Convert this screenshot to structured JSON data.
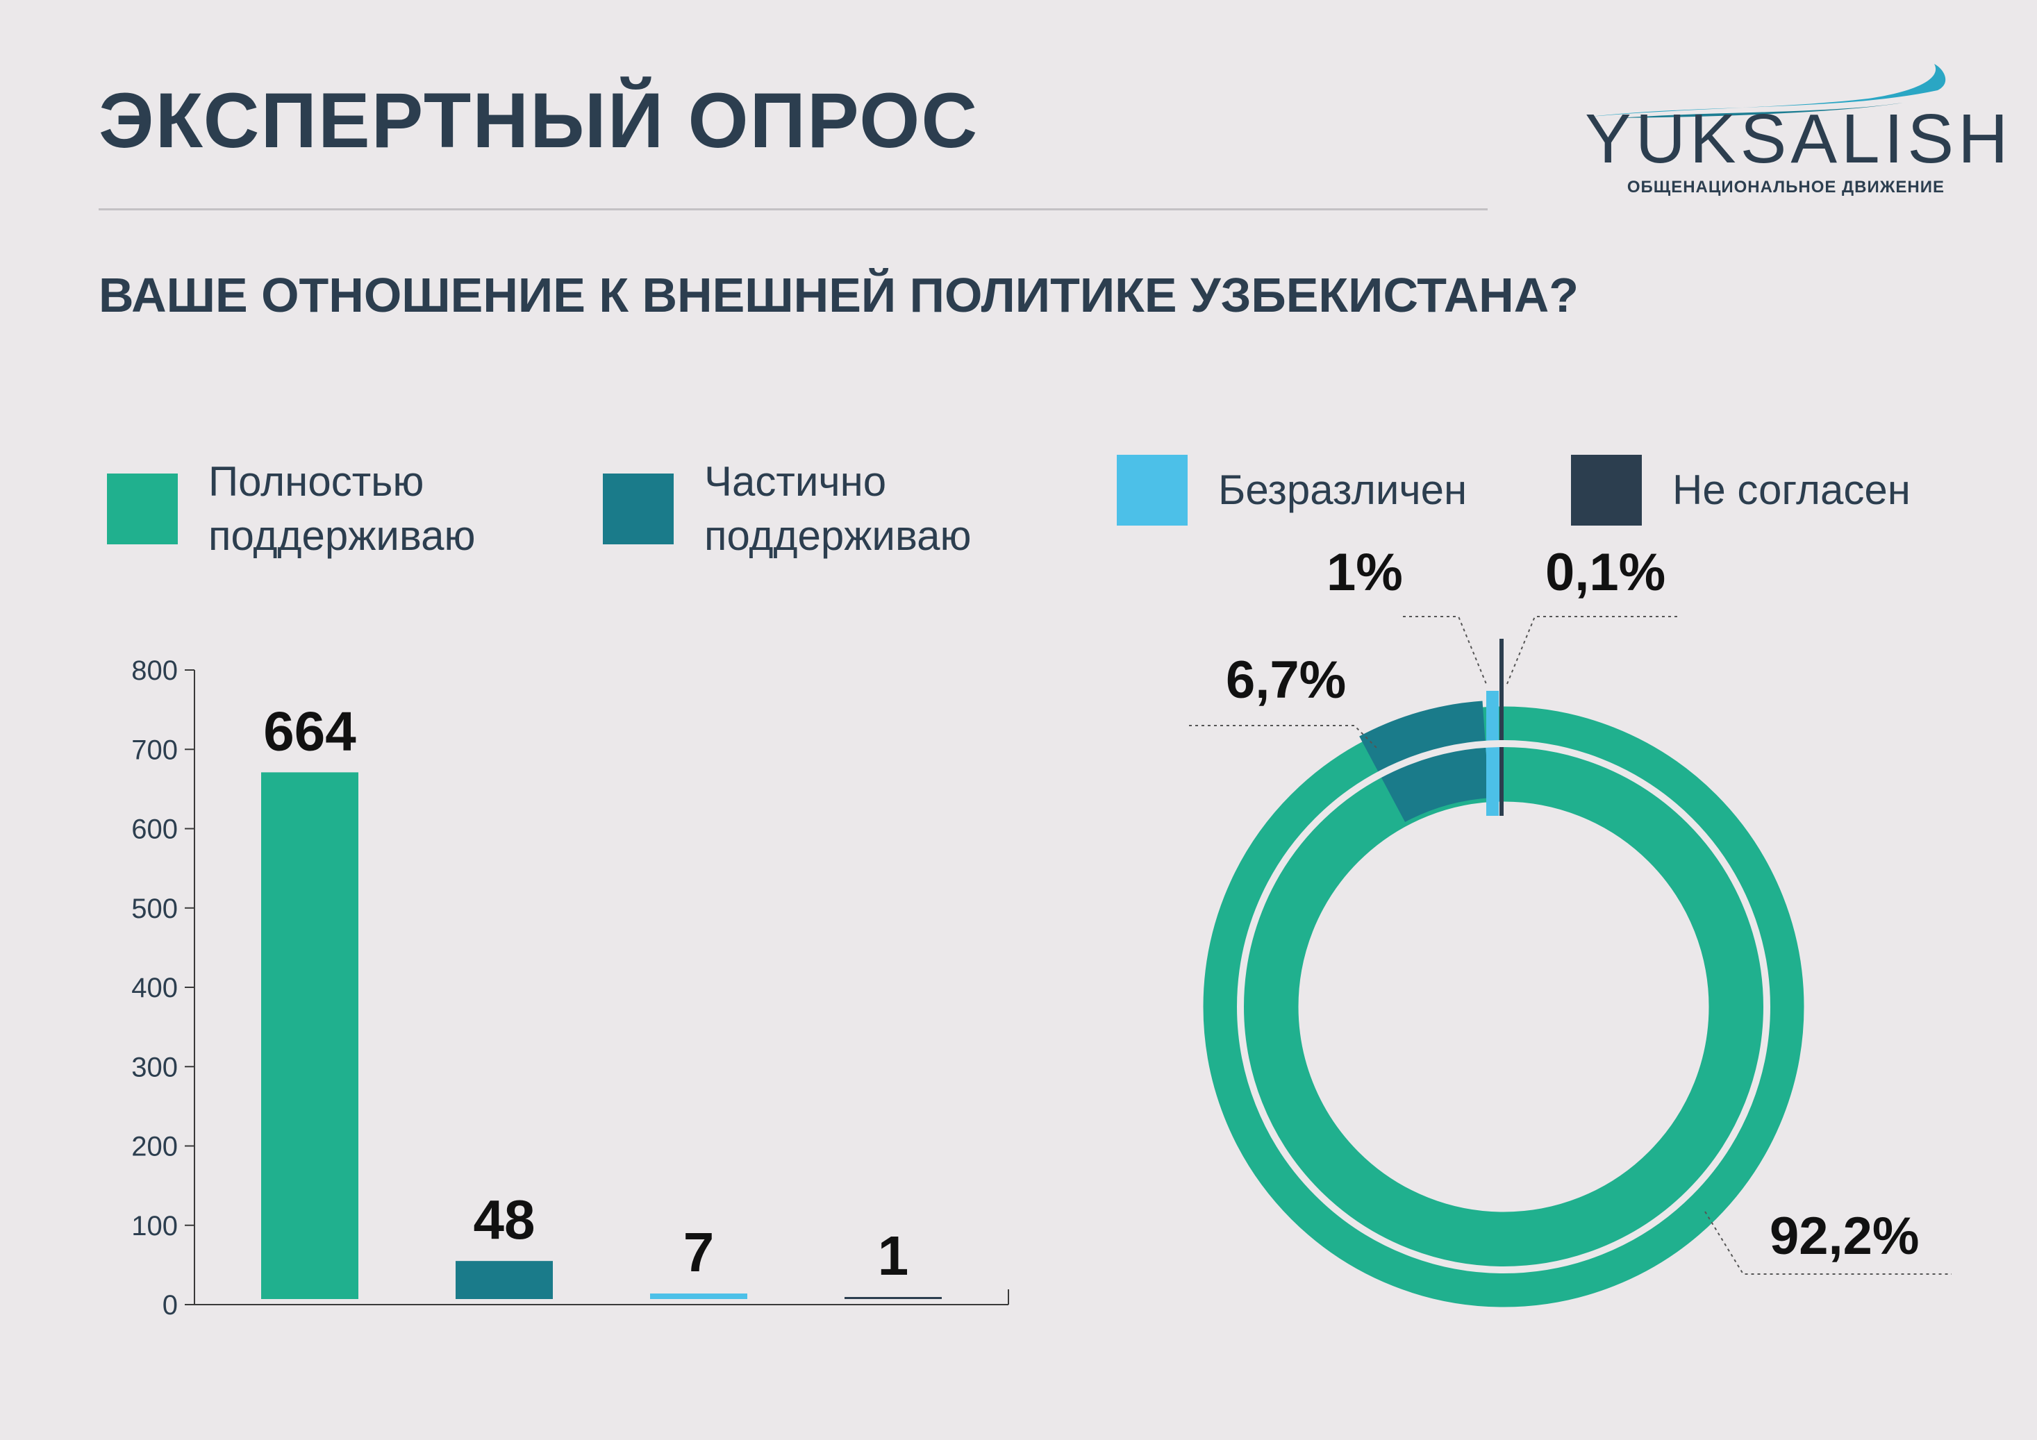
{
  "header": {
    "title": "ЭКСПЕРТНЫЙ ОПРОС",
    "question": "ВАШЕ ОТНОШЕНИЕ К ВНЕШНЕЙ ПОЛИТИКЕ УЗБЕКИСТАНА?"
  },
  "logo": {
    "name": "YUKSALISH",
    "subtitle": "ОБЩЕНАЦИОНАЛЬНОЕ ДВИЖЕНИЕ"
  },
  "colors": {
    "background": "#ebe8ea",
    "text": "#2c3e4f",
    "full_support": "#20b08e",
    "partial_support": "#1a7b8a",
    "indifferent": "#4cc0e8",
    "disagree": "#2c3e4f"
  },
  "legend": [
    {
      "label": "Полностью поддерживаю",
      "line1": "Полностью",
      "line2": "поддерживаю",
      "color": "#20b08e"
    },
    {
      "label": "Частично поддерживаю",
      "line1": "Частично",
      "line2": "поддерживаю",
      "color": "#1a7b8a"
    },
    {
      "label": "Безразличен",
      "line1": "Безразличен",
      "line2": "",
      "color": "#4cc0e8"
    },
    {
      "label": "Не согласен",
      "line1": "Не согласен",
      "line2": "",
      "color": "#2c3e4f"
    }
  ],
  "chart_data": [
    {
      "type": "bar",
      "categories": [
        "Полностью поддерживаю",
        "Частично поддерживаю",
        "Безразличен",
        "Не согласен"
      ],
      "values": [
        664,
        48,
        7,
        1
      ],
      "data_labels": [
        "664",
        "48",
        "7",
        "1"
      ],
      "colors": [
        "#20b08e",
        "#1a7b8a",
        "#4cc0e8",
        "#2c3e4f"
      ],
      "ylim": [
        0,
        800
      ],
      "yticks": [
        0,
        100,
        200,
        300,
        400,
        500,
        600,
        700,
        800
      ],
      "grid": false
    },
    {
      "type": "pie",
      "style": "donut",
      "categories": [
        "Полностью поддерживаю",
        "Частично поддерживаю",
        "Безразличен",
        "Не согласен"
      ],
      "values": [
        92.2,
        6.7,
        1,
        0.1
      ],
      "data_labels": [
        "92,2%",
        "6,7%",
        "1%",
        "0,1%"
      ],
      "colors": [
        "#20b08e",
        "#1a7b8a",
        "#4cc0e8",
        "#2c3e4f"
      ]
    }
  ]
}
